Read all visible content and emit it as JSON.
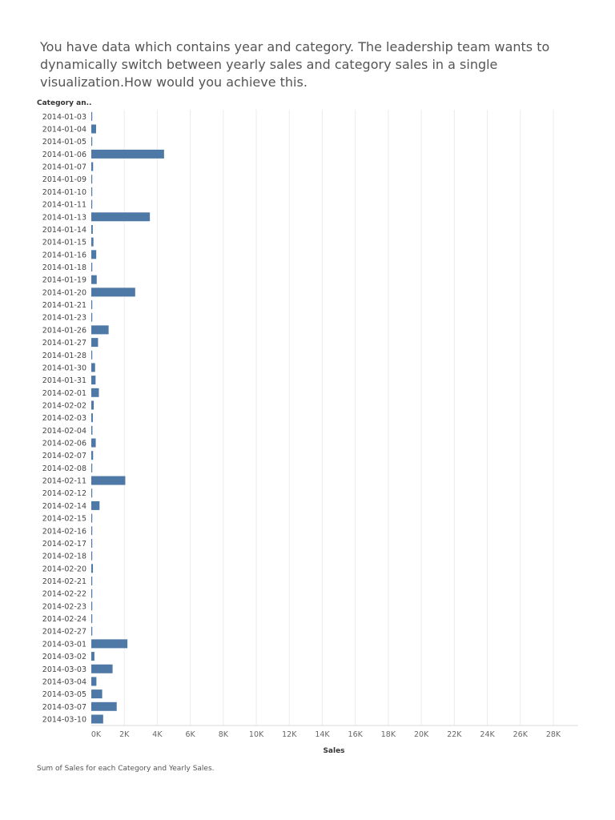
{
  "question": "You have data which contains year and category. The leadership team wants to dynamically switch between yearly sales and category sales in a single visualization.How would you achieve this.",
  "row_header": "Category an..",
  "caption": "Sum of Sales for each Category and Yearly Sales.",
  "colors": {
    "bar": "#4e79a7",
    "grid": "#ececec",
    "axis_text": "#666666"
  },
  "chart_data": {
    "type": "bar",
    "orientation": "horizontal",
    "xlabel": "Sales",
    "ylabel": "Category an..",
    "xlim": [
      0,
      28000
    ],
    "xticks": [
      0,
      2000,
      4000,
      6000,
      8000,
      10000,
      12000,
      14000,
      16000,
      18000,
      20000,
      22000,
      24000,
      26000,
      28000
    ],
    "xtick_labels": [
      "0K",
      "2K",
      "4K",
      "6K",
      "8K",
      "10K",
      "12K",
      "14K",
      "16K",
      "18K",
      "20K",
      "22K",
      "24K",
      "26K",
      "28K"
    ],
    "grid": true,
    "categories": [
      "2014-01-03",
      "2014-01-04",
      "2014-01-05",
      "2014-01-06",
      "2014-01-07",
      "2014-01-09",
      "2014-01-10",
      "2014-01-11",
      "2014-01-13",
      "2014-01-14",
      "2014-01-15",
      "2014-01-16",
      "2014-01-18",
      "2014-01-19",
      "2014-01-20",
      "2014-01-21",
      "2014-01-23",
      "2014-01-26",
      "2014-01-27",
      "2014-01-28",
      "2014-01-30",
      "2014-01-31",
      "2014-02-01",
      "2014-02-02",
      "2014-02-03",
      "2014-02-04",
      "2014-02-06",
      "2014-02-07",
      "2014-02-08",
      "2014-02-11",
      "2014-02-12",
      "2014-02-14",
      "2014-02-15",
      "2014-02-16",
      "2014-02-17",
      "2014-02-18",
      "2014-02-20",
      "2014-02-21",
      "2014-02-22",
      "2014-02-23",
      "2014-02-24",
      "2014-02-27",
      "2014-03-01",
      "2014-03-02",
      "2014-03-03",
      "2014-03-04",
      "2014-03-05",
      "2014-03-07",
      "2014-03-10"
    ],
    "values": [
      16,
      290,
      20,
      4410,
      110,
      15,
      40,
      25,
      3550,
      90,
      130,
      300,
      60,
      330,
      2660,
      25,
      15,
      1050,
      410,
      35,
      230,
      260,
      460,
      150,
      95,
      70,
      270,
      110,
      30,
      2060,
      50,
      500,
      40,
      20,
      30,
      35,
      100,
      20,
      25,
      15,
      45,
      60,
      2190,
      190,
      1290,
      310,
      660,
      1540,
      720
    ]
  }
}
